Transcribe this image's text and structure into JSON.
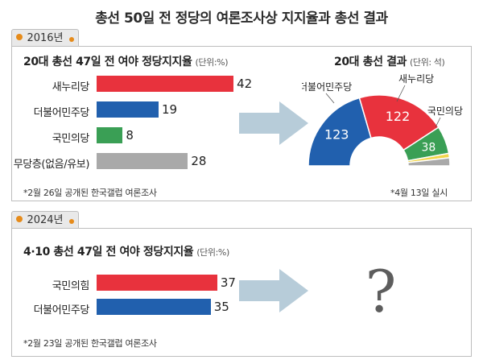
{
  "title": "총선 50일 전 정당의 여론조사상 지지율과 총선 결과",
  "colors": {
    "red": "#e8323d",
    "blue": "#2160ae",
    "green": "#3a9f55",
    "gray": "#a9a9a9",
    "yellow": "#f1d54a",
    "arrow": "#b7ccd9",
    "tab_dot": "#e68b1a"
  },
  "section_2016": {
    "year": "2016년",
    "poll_title": "20대 총선 47일 전 여야 정당지지율",
    "poll_unit": "(단위:%)",
    "poll_note": "*2월 26일 공개된 한국갤럽 여론조사",
    "result_title": "20대 총선 결과",
    "result_unit": "(단위: 석)",
    "result_note": "*4월 13일 실시"
  },
  "section_2024": {
    "year": "2024년",
    "poll_title": "4·10 총선 47일 전 여야 정당지지율",
    "poll_unit": "(단위:%)",
    "poll_note": "*2월 23일 공개된 한국갤럽 여론조사",
    "unknown_mark": "?"
  },
  "chart_data": [
    {
      "type": "bar",
      "orientation": "horizontal",
      "title": "20대 총선 47일 전 여야 정당지지율",
      "unit": "%",
      "categories": [
        "새누리당",
        "더불어민주당",
        "국민의당",
        "무당층(없음/유보)"
      ],
      "values": [
        42,
        19,
        8,
        28
      ],
      "colors": [
        "#e8323d",
        "#2160ae",
        "#3a9f55",
        "#a9a9a9"
      ]
    },
    {
      "type": "pie",
      "style": "semicircle",
      "title": "20대 총선 결과",
      "unit": "석",
      "categories": [
        "더불어민주당",
        "새누리당",
        "국민의당",
        "",
        ""
      ],
      "values": [
        123,
        122,
        38,
        6,
        11
      ],
      "labels": [
        "123",
        "122",
        "38",
        "",
        ""
      ],
      "outside_labels": [
        "더불어민주당",
        "새누리당",
        "국민의당"
      ],
      "colors": [
        "#2160ae",
        "#e8323d",
        "#3a9f55",
        "#f1d54a",
        "#a9a9a9"
      ]
    },
    {
      "type": "bar",
      "orientation": "horizontal",
      "title": "4·10 총선 47일 전 여야 정당지지율",
      "unit": "%",
      "categories": [
        "국민의힘",
        "더불어민주당"
      ],
      "values": [
        37,
        35
      ],
      "colors": [
        "#e8323d",
        "#2160ae"
      ]
    }
  ]
}
